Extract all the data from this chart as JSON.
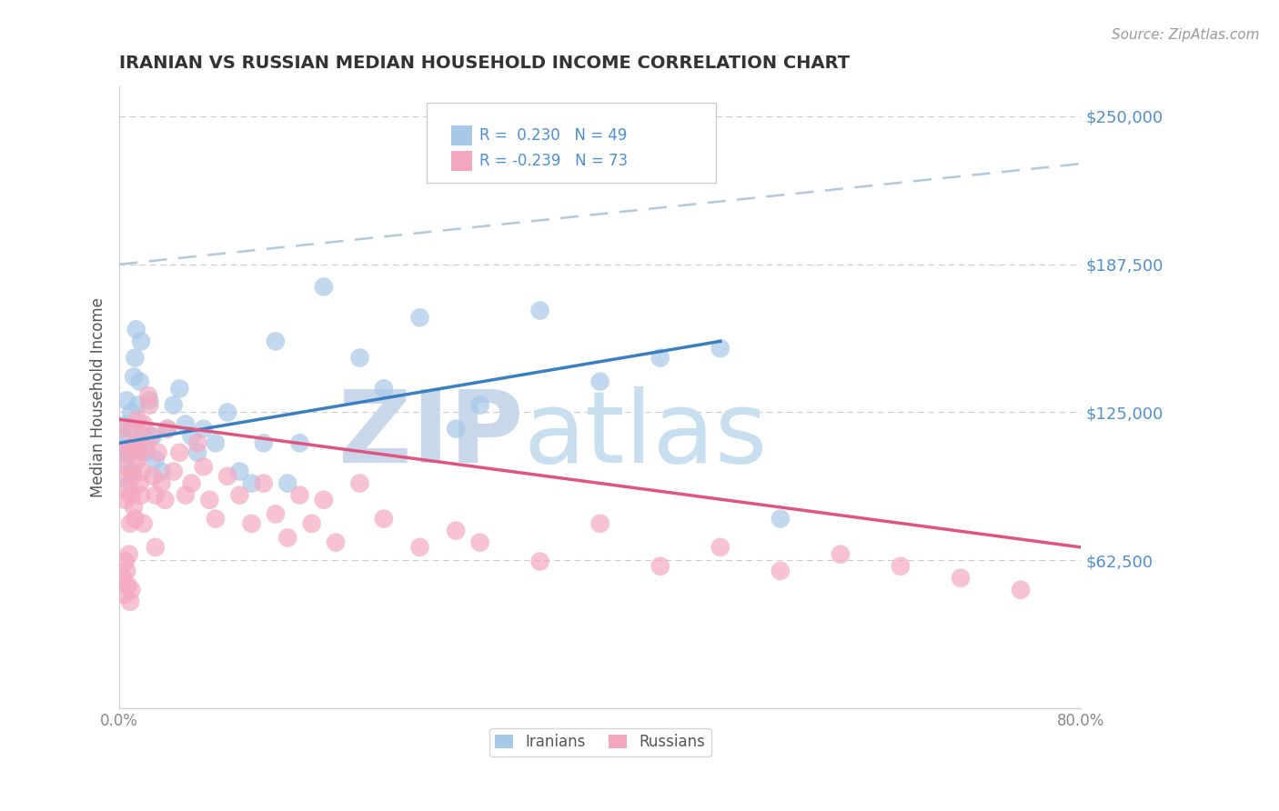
{
  "title": "IRANIAN VS RUSSIAN MEDIAN HOUSEHOLD INCOME CORRELATION CHART",
  "source": "Source: ZipAtlas.com",
  "ylabel": "Median Household Income",
  "xlim": [
    0.0,
    0.8
  ],
  "ylim": [
    0,
    262500
  ],
  "yticks": [
    62500,
    125000,
    187500,
    250000
  ],
  "ytick_labels": [
    "$62,500",
    "$125,000",
    "$187,500",
    "$250,000"
  ],
  "xtick_labels": [
    "0.0%",
    "80.0%"
  ],
  "iranians_R": 0.23,
  "iranians_N": 49,
  "russians_R": -0.239,
  "russians_N": 73,
  "iranian_color": "#a8c8e8",
  "russian_color": "#f4a8c0",
  "iranian_line_color": "#3a7fc1",
  "russian_line_color": "#e05580",
  "dashed_line_color": "#b0c8e0",
  "legend_text_color": "#4a90d9",
  "ytick_color": "#5090d0",
  "title_color": "#333333",
  "watermark_color": "#dde8f4",
  "background_color": "#ffffff",
  "grid_color": "#cccccc",
  "iranian_line_x": [
    0.0,
    0.5
  ],
  "iranian_line_y": [
    112000,
    155000
  ],
  "russian_line_x": [
    0.0,
    0.8
  ],
  "russian_line_y": [
    122000,
    68000
  ],
  "dashed_line_x": [
    0.0,
    0.8
  ],
  "dashed_line_y": [
    187500,
    230000
  ],
  "iranian_scatter_x": [
    0.002,
    0.003,
    0.004,
    0.005,
    0.006,
    0.007,
    0.008,
    0.009,
    0.01,
    0.011,
    0.012,
    0.013,
    0.014,
    0.015,
    0.016,
    0.017,
    0.018,
    0.02,
    0.022,
    0.025,
    0.028,
    0.03,
    0.035,
    0.04,
    0.045,
    0.05,
    0.055,
    0.06,
    0.065,
    0.07,
    0.08,
    0.09,
    0.1,
    0.11,
    0.12,
    0.13,
    0.14,
    0.15,
    0.17,
    0.2,
    0.22,
    0.25,
    0.28,
    0.3,
    0.35,
    0.4,
    0.45,
    0.5,
    0.55
  ],
  "iranian_scatter_y": [
    110000,
    115000,
    105000,
    120000,
    130000,
    108000,
    95000,
    118000,
    125000,
    100000,
    140000,
    148000,
    160000,
    128000,
    112000,
    138000,
    155000,
    118000,
    108000,
    130000,
    115000,
    105000,
    100000,
    118000,
    128000,
    135000,
    120000,
    115000,
    108000,
    118000,
    112000,
    125000,
    100000,
    95000,
    112000,
    155000,
    95000,
    112000,
    178000,
    148000,
    135000,
    165000,
    118000,
    128000,
    168000,
    138000,
    148000,
    152000,
    80000
  ],
  "russian_scatter_x": [
    0.002,
    0.003,
    0.004,
    0.005,
    0.006,
    0.007,
    0.008,
    0.009,
    0.01,
    0.011,
    0.012,
    0.013,
    0.014,
    0.015,
    0.016,
    0.017,
    0.018,
    0.019,
    0.02,
    0.022,
    0.024,
    0.026,
    0.028,
    0.03,
    0.032,
    0.035,
    0.038,
    0.04,
    0.045,
    0.05,
    0.055,
    0.06,
    0.065,
    0.07,
    0.075,
    0.08,
    0.09,
    0.1,
    0.11,
    0.12,
    0.13,
    0.14,
    0.15,
    0.16,
    0.17,
    0.18,
    0.2,
    0.22,
    0.25,
    0.28,
    0.3,
    0.35,
    0.4,
    0.45,
    0.5,
    0.55,
    0.6,
    0.65,
    0.7,
    0.75,
    0.003,
    0.004,
    0.005,
    0.006,
    0.007,
    0.008,
    0.009,
    0.01,
    0.012,
    0.015,
    0.02,
    0.025,
    0.03
  ],
  "russian_scatter_y": [
    108000,
    118000,
    98000,
    88000,
    102000,
    92000,
    110000,
    78000,
    90000,
    98000,
    85000,
    80000,
    112000,
    122000,
    108000,
    95000,
    90000,
    100000,
    120000,
    110000,
    132000,
    115000,
    98000,
    90000,
    108000,
    95000,
    88000,
    118000,
    100000,
    108000,
    90000,
    95000,
    112000,
    102000,
    88000,
    80000,
    98000,
    90000,
    78000,
    95000,
    82000,
    72000,
    90000,
    78000,
    88000,
    70000,
    95000,
    80000,
    68000,
    75000,
    70000,
    62000,
    78000,
    60000,
    68000,
    58000,
    65000,
    60000,
    55000,
    50000,
    55000,
    48000,
    62000,
    58000,
    52000,
    65000,
    45000,
    50000,
    118000,
    105000,
    78000,
    128000,
    68000
  ]
}
